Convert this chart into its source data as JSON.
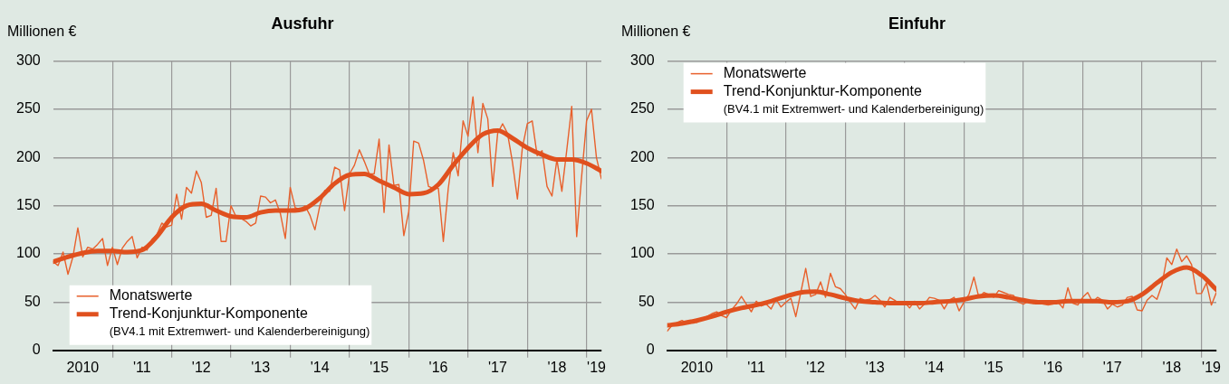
{
  "chart_data": [
    {
      "type": "line",
      "title": "Ausfuhr",
      "ylabel": "Millionen €",
      "xlim": [
        "2010-01",
        "2019-04"
      ],
      "ylim": [
        0,
        300
      ],
      "yticks": [
        0,
        50,
        100,
        150,
        200,
        250,
        300
      ],
      "xticks": [
        {
          "value": "2010-07",
          "label": "2010"
        },
        {
          "value": "2011-01",
          "label": null
        },
        {
          "value": "2011-07",
          "label": "'11"
        },
        {
          "value": "2012-01",
          "label": null
        },
        {
          "value": "2012-07",
          "label": "'12"
        },
        {
          "value": "2013-01",
          "label": null
        },
        {
          "value": "2013-07",
          "label": "'13"
        },
        {
          "value": "2014-01",
          "label": null
        },
        {
          "value": "2014-07",
          "label": "'14"
        },
        {
          "value": "2015-01",
          "label": null
        },
        {
          "value": "2015-07",
          "label": "'15"
        },
        {
          "value": "2016-01",
          "label": null
        },
        {
          "value": "2016-07",
          "label": "'16"
        },
        {
          "value": "2017-01",
          "label": null
        },
        {
          "value": "2017-07",
          "label": "'17"
        },
        {
          "value": "2018-01",
          "label": null
        },
        {
          "value": "2018-07",
          "label": "'18"
        },
        {
          "value": "2019-01",
          "label": null
        },
        {
          "value": "2019-03",
          "label": "'19"
        }
      ],
      "grid": true,
      "legend": "bottom left",
      "annotations": [
        "(BV4.1 mit Extremwert- und Kalenderbereinigung)"
      ],
      "x": [
        "2010-01",
        "2010-02",
        "2010-03",
        "2010-04",
        "2010-05",
        "2010-06",
        "2010-07",
        "2010-08",
        "2010-09",
        "2010-10",
        "2010-11",
        "2010-12",
        "2011-01",
        "2011-02",
        "2011-03",
        "2011-04",
        "2011-05",
        "2011-06",
        "2011-07",
        "2011-08",
        "2011-09",
        "2011-10",
        "2011-11",
        "2011-12",
        "2012-01",
        "2012-02",
        "2012-03",
        "2012-04",
        "2012-05",
        "2012-06",
        "2012-07",
        "2012-08",
        "2012-09",
        "2012-10",
        "2012-11",
        "2012-12",
        "2013-01",
        "2013-02",
        "2013-03",
        "2013-04",
        "2013-05",
        "2013-06",
        "2013-07",
        "2013-08",
        "2013-09",
        "2013-10",
        "2013-11",
        "2013-12",
        "2014-01",
        "2014-02",
        "2014-03",
        "2014-04",
        "2014-05",
        "2014-06",
        "2014-07",
        "2014-08",
        "2014-09",
        "2014-10",
        "2014-11",
        "2014-12",
        "2015-01",
        "2015-02",
        "2015-03",
        "2015-04",
        "2015-05",
        "2015-06",
        "2015-07",
        "2015-08",
        "2015-09",
        "2015-10",
        "2015-11",
        "2015-12",
        "2016-01",
        "2016-02",
        "2016-03",
        "2016-04",
        "2016-05",
        "2016-06",
        "2016-07",
        "2016-08",
        "2016-09",
        "2016-10",
        "2016-11",
        "2016-12",
        "2017-01",
        "2017-02",
        "2017-03",
        "2017-04",
        "2017-05",
        "2017-06",
        "2017-07",
        "2017-08",
        "2017-09",
        "2017-10",
        "2017-11",
        "2017-12",
        "2018-01",
        "2018-02",
        "2018-03",
        "2018-04",
        "2018-05",
        "2018-06",
        "2018-07",
        "2018-08",
        "2018-09",
        "2018-10",
        "2018-11",
        "2018-12",
        "2019-01",
        "2019-02",
        "2019-03",
        "2019-04"
      ],
      "series": [
        {
          "name": "Monatswerte",
          "color": "#e8602c",
          "values": [
            92,
            88,
            102,
            79,
            97,
            127,
            97,
            107,
            105,
            110,
            116,
            88,
            107,
            89,
            106,
            113,
            118,
            96,
            107,
            104,
            115,
            120,
            132,
            128,
            130,
            162,
            136,
            169,
            163,
            186,
            174,
            138,
            140,
            168,
            113,
            113,
            150,
            139,
            137,
            134,
            129,
            132,
            160,
            159,
            153,
            156,
            142,
            116,
            169,
            148,
            146,
            150,
            140,
            125,
            150,
            166,
            165,
            190,
            187,
            145,
            183,
            192,
            208,
            196,
            183,
            183,
            219,
            143,
            213,
            171,
            172,
            119,
            144,
            217,
            215,
            197,
            170,
            168,
            168,
            113,
            168,
            205,
            181,
            238,
            222,
            263,
            205,
            256,
            240,
            170,
            225,
            235,
            225,
            195,
            157,
            210,
            235,
            238,
            202,
            207,
            170,
            160,
            198,
            165,
            208,
            253,
            118,
            180,
            238,
            250,
            200,
            178
          ]
        },
        {
          "name": "Trend-Konjunktur-Komponente",
          "color": "#e0501e",
          "x": [
            "2010-01",
            "2010-04",
            "2010-07",
            "2010-10",
            "2011-01",
            "2011-04",
            "2011-07",
            "2011-10",
            "2012-01",
            "2012-04",
            "2012-07",
            "2012-10",
            "2013-01",
            "2013-04",
            "2013-07",
            "2013-10",
            "2014-01",
            "2014-04",
            "2014-07",
            "2014-10",
            "2015-01",
            "2015-04",
            "2015-07",
            "2015-10",
            "2016-01",
            "2016-04",
            "2016-07",
            "2016-10",
            "2017-01",
            "2017-04",
            "2017-07",
            "2017-10",
            "2018-01",
            "2018-04",
            "2018-07",
            "2018-10",
            "2019-01",
            "2019-04"
          ],
          "values": [
            92,
            97,
            101,
            103,
            103,
            102,
            104,
            118,
            138,
            150,
            152,
            145,
            139,
            138,
            143,
            145,
            145,
            147,
            158,
            173,
            182,
            183,
            176,
            169,
            162,
            163,
            172,
            192,
            210,
            224,
            228,
            220,
            210,
            203,
            198,
            198,
            194,
            186
          ]
        }
      ]
    },
    {
      "type": "line",
      "title": "Einfuhr",
      "ylabel": "Millionen €",
      "xlim": [
        "2010-01",
        "2019-04"
      ],
      "ylim": [
        0,
        300
      ],
      "yticks": [
        0,
        50,
        100,
        150,
        200,
        250,
        300
      ],
      "xticks": [
        {
          "value": "2010-07",
          "label": "2010"
        },
        {
          "value": "2011-01",
          "label": null
        },
        {
          "value": "2011-07",
          "label": "'11"
        },
        {
          "value": "2012-01",
          "label": null
        },
        {
          "value": "2012-07",
          "label": "'12"
        },
        {
          "value": "2013-01",
          "label": null
        },
        {
          "value": "2013-07",
          "label": "'13"
        },
        {
          "value": "2014-01",
          "label": null
        },
        {
          "value": "2014-07",
          "label": "'14"
        },
        {
          "value": "2015-01",
          "label": null
        },
        {
          "value": "2015-07",
          "label": "'15"
        },
        {
          "value": "2016-01",
          "label": null
        },
        {
          "value": "2016-07",
          "label": "'16"
        },
        {
          "value": "2017-01",
          "label": null
        },
        {
          "value": "2017-07",
          "label": "'17"
        },
        {
          "value": "2018-01",
          "label": null
        },
        {
          "value": "2018-07",
          "label": "'18"
        },
        {
          "value": "2019-01",
          "label": null
        },
        {
          "value": "2019-03",
          "label": "'19"
        }
      ],
      "grid": true,
      "legend": "top left",
      "annotations": [
        "(BV4.1 mit Extremwert- und Kalenderbereinigung)"
      ],
      "x": [
        "2010-01",
        "2010-02",
        "2010-03",
        "2010-04",
        "2010-05",
        "2010-06",
        "2010-07",
        "2010-08",
        "2010-09",
        "2010-10",
        "2010-11",
        "2010-12",
        "2011-01",
        "2011-02",
        "2011-03",
        "2011-04",
        "2011-05",
        "2011-06",
        "2011-07",
        "2011-08",
        "2011-09",
        "2011-10",
        "2011-11",
        "2011-12",
        "2012-01",
        "2012-02",
        "2012-03",
        "2012-04",
        "2012-05",
        "2012-06",
        "2012-07",
        "2012-08",
        "2012-09",
        "2012-10",
        "2012-11",
        "2012-12",
        "2013-01",
        "2013-02",
        "2013-03",
        "2013-04",
        "2013-05",
        "2013-06",
        "2013-07",
        "2013-08",
        "2013-09",
        "2013-10",
        "2013-11",
        "2013-12",
        "2014-01",
        "2014-02",
        "2014-03",
        "2014-04",
        "2014-05",
        "2014-06",
        "2014-07",
        "2014-08",
        "2014-09",
        "2014-10",
        "2014-11",
        "2014-12",
        "2015-01",
        "2015-02",
        "2015-03",
        "2015-04",
        "2015-05",
        "2015-06",
        "2015-07",
        "2015-08",
        "2015-09",
        "2015-10",
        "2015-11",
        "2015-12",
        "2016-01",
        "2016-02",
        "2016-03",
        "2016-04",
        "2016-05",
        "2016-06",
        "2016-07",
        "2016-08",
        "2016-09",
        "2016-10",
        "2016-11",
        "2016-12",
        "2017-01",
        "2017-02",
        "2017-03",
        "2017-04",
        "2017-05",
        "2017-06",
        "2017-07",
        "2017-08",
        "2017-09",
        "2017-10",
        "2017-11",
        "2017-12",
        "2018-01",
        "2018-02",
        "2018-03",
        "2018-04",
        "2018-05",
        "2018-06",
        "2018-07",
        "2018-08",
        "2018-09",
        "2018-10",
        "2018-11",
        "2018-12",
        "2019-01",
        "2019-02",
        "2019-03",
        "2019-04"
      ],
      "series": [
        {
          "name": "Monatswerte",
          "color": "#e8602c",
          "values": [
            20,
            26,
            29,
            31,
            28,
            30,
            29,
            33,
            35,
            38,
            40,
            36,
            34,
            42,
            48,
            56,
            48,
            40,
            51,
            46,
            48,
            43,
            53,
            45,
            50,
            54,
            35,
            60,
            85,
            56,
            58,
            71,
            55,
            80,
            66,
            64,
            58,
            50,
            43,
            54,
            52,
            53,
            57,
            52,
            45,
            55,
            52,
            48,
            50,
            44,
            51,
            43,
            48,
            55,
            54,
            52,
            43,
            52,
            55,
            41,
            50,
            58,
            76,
            55,
            60,
            58,
            55,
            62,
            60,
            58,
            57,
            50,
            48,
            51,
            49,
            50,
            48,
            47,
            48,
            50,
            44,
            65,
            49,
            47,
            55,
            60,
            50,
            55,
            52,
            43,
            48,
            45,
            47,
            55,
            56,
            42,
            41,
            52,
            57,
            53,
            68,
            96,
            89,
            105,
            92,
            98,
            89,
            59,
            59,
            70,
            47,
            60
          ]
        },
        {
          "name": "Trend-Konjunktur-Komponente",
          "color": "#e0501e",
          "x": [
            "2010-01",
            "2010-04",
            "2010-07",
            "2010-10",
            "2011-01",
            "2011-04",
            "2011-07",
            "2011-10",
            "2012-01",
            "2012-04",
            "2012-07",
            "2012-10",
            "2013-01",
            "2013-04",
            "2013-07",
            "2013-10",
            "2014-01",
            "2014-04",
            "2014-07",
            "2014-10",
            "2015-01",
            "2015-04",
            "2015-07",
            "2015-10",
            "2016-01",
            "2016-04",
            "2016-07",
            "2016-10",
            "2017-01",
            "2017-04",
            "2017-07",
            "2017-10",
            "2018-01",
            "2018-04",
            "2018-07",
            "2018-10",
            "2019-01",
            "2019-04"
          ],
          "values": [
            26,
            28,
            31,
            35,
            40,
            44,
            47,
            51,
            56,
            60,
            61,
            58,
            54,
            51,
            50,
            49,
            49,
            49,
            50,
            51,
            53,
            56,
            57,
            55,
            52,
            50,
            50,
            51,
            51,
            51,
            50,
            51,
            58,
            70,
            81,
            86,
            78,
            63
          ]
        }
      ]
    }
  ]
}
